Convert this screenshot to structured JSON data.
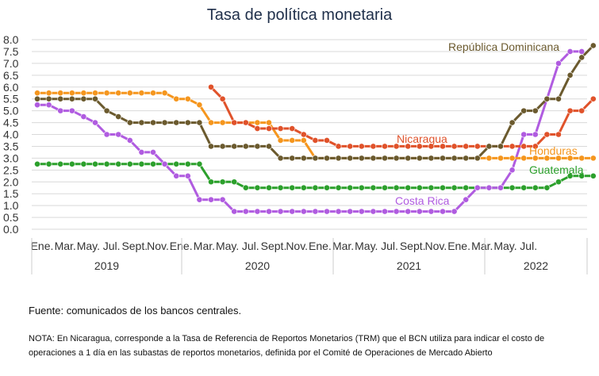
{
  "title": "Tasa de política monetaria",
  "source": "Fuente: comunicados de los bancos centrales.",
  "note": "NOTA: En Nicaragua, corresponde a la Tasa de Referencia de Reportos Monetarios (TRM) que el BCN utiliza para indicar el costo de operaciones a 1 día en las subastas de reportos monetarios, definida por el Comité de Operaciones de Mercado Abierto",
  "chart_data": {
    "type": "line",
    "title": "Tasa de política monetaria",
    "x_month_tick_labels": [
      "Ene.",
      "Mar.",
      "May.",
      "Jul.",
      "Sept.",
      "Nov."
    ],
    "x_month_tick_labels_2022": [
      "Ene.",
      "Mar.",
      "May.",
      "Jul."
    ],
    "years": [
      "2019",
      "2020",
      "2021",
      "2022"
    ],
    "ylim": [
      0,
      8
    ],
    "yticks": [
      "0.0",
      "0.5",
      "1.0",
      "1.5",
      "2.0",
      "2.5",
      "3.0",
      "3.5",
      "4.0",
      "4.5",
      "5.0",
      "5.5",
      "6.0",
      "6.5",
      "7.0",
      "7.5",
      "8.0"
    ],
    "grid": true,
    "legend": "labels placed next to lines",
    "series": [
      {
        "name": "República Dominicana",
        "color": "#6b5a2e",
        "start_month": 0,
        "values": [
          5.5,
          5.5,
          5.5,
          5.5,
          5.5,
          5.5,
          5.0,
          4.75,
          4.5,
          4.5,
          4.5,
          4.5,
          4.5,
          4.5,
          4.5,
          3.5,
          3.5,
          3.5,
          3.5,
          3.5,
          3.5,
          3.0,
          3.0,
          3.0,
          3.0,
          3.0,
          3.0,
          3.0,
          3.0,
          3.0,
          3.0,
          3.0,
          3.0,
          3.0,
          3.0,
          3.0,
          3.0,
          3.0,
          3.0,
          3.5,
          3.5,
          4.5,
          5.0,
          5.0,
          5.5,
          5.5,
          6.5,
          7.25,
          7.75
        ]
      },
      {
        "name": "Nicaragua",
        "color": "#e0522a",
        "start_month": 15,
        "values": [
          6.0,
          5.5,
          4.5,
          4.5,
          4.25,
          4.25,
          4.25,
          4.25,
          4.0,
          3.75,
          3.75,
          3.5,
          3.5,
          3.5,
          3.5,
          3.5,
          3.5,
          3.5,
          3.5,
          3.5,
          3.5,
          3.5,
          3.5,
          3.5,
          3.5,
          3.5,
          3.5,
          3.5,
          3.5,
          4.0,
          4.0,
          5.0,
          5.0,
          5.5
        ]
      },
      {
        "name": "Honduras",
        "color": "#f5961e",
        "start_month": 0,
        "values": [
          5.75,
          5.75,
          5.75,
          5.75,
          5.75,
          5.75,
          5.75,
          5.75,
          5.75,
          5.75,
          5.75,
          5.75,
          5.5,
          5.5,
          5.25,
          4.5,
          4.5,
          4.5,
          4.5,
          4.5,
          4.5,
          3.75,
          3.75,
          3.75,
          3.0,
          3.0,
          3.0,
          3.0,
          3.0,
          3.0,
          3.0,
          3.0,
          3.0,
          3.0,
          3.0,
          3.0,
          3.0,
          3.0,
          3.0,
          3.0,
          3.0,
          3.0,
          3.0,
          3.0,
          3.0,
          3.0,
          3.0,
          3.0,
          3.0
        ]
      },
      {
        "name": "Guatemala",
        "color": "#2ca02c",
        "start_month": 0,
        "values": [
          2.75,
          2.75,
          2.75,
          2.75,
          2.75,
          2.75,
          2.75,
          2.75,
          2.75,
          2.75,
          2.75,
          2.75,
          2.75,
          2.75,
          2.75,
          2.0,
          2.0,
          2.0,
          1.75,
          1.75,
          1.75,
          1.75,
          1.75,
          1.75,
          1.75,
          1.75,
          1.75,
          1.75,
          1.75,
          1.75,
          1.75,
          1.75,
          1.75,
          1.75,
          1.75,
          1.75,
          1.75,
          1.75,
          1.75,
          1.75,
          1.75,
          1.75,
          1.75,
          1.75,
          1.75,
          2.0,
          2.25,
          2.25,
          2.25
        ]
      },
      {
        "name": "Costa Rica",
        "color": "#b05ce0",
        "start_month": 0,
        "values": [
          5.25,
          5.25,
          5.0,
          5.0,
          4.75,
          4.5,
          4.0,
          4.0,
          3.75,
          3.25,
          3.25,
          2.75,
          2.25,
          2.25,
          1.25,
          1.25,
          1.25,
          0.75,
          0.75,
          0.75,
          0.75,
          0.75,
          0.75,
          0.75,
          0.75,
          0.75,
          0.75,
          0.75,
          0.75,
          0.75,
          0.75,
          0.75,
          0.75,
          0.75,
          0.75,
          0.75,
          0.75,
          1.25,
          1.75,
          1.75,
          1.75,
          2.5,
          4.0,
          4.0,
          5.5,
          7.0,
          7.5,
          7.5
        ]
      }
    ]
  }
}
